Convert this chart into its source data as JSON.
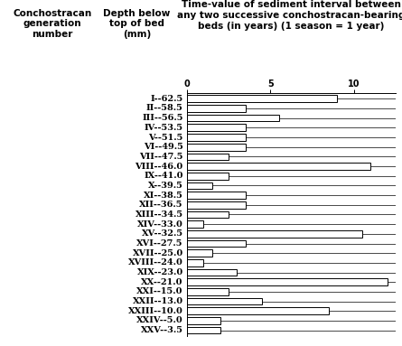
{
  "col1_header": "Conchostracan\ngeneration\nnumber",
  "col2_header": "Depth below\ntop of bed\n(mm)",
  "col3_header": "Time-value of sediment interval between\nany two successive conchostracan-bearing\nbeds (in years) (1 season = 1 year)",
  "labels": [
    "I--62.5",
    "II--58.5",
    "III--56.5",
    "IV--53.5",
    "V--51.5",
    "VI--49.5",
    "VII--47.5",
    "VIII--46.0",
    "IX--41.0",
    "X--39.5",
    "XI--38.5",
    "XII--36.5",
    "XIII--34.5",
    "XIV--33.0",
    "XV--32.5",
    "XVI--27.5",
    "XVII--25.0",
    "XVIII--24.0",
    "XIX--23.0",
    "XX--21.0",
    "XXI--15.0",
    "XXII--13.0",
    "XXIII--10.0",
    "XXIV--5.0",
    "XXV--3.5"
  ],
  "values": [
    9.0,
    3.5,
    5.5,
    3.5,
    3.5,
    3.5,
    2.5,
    11.0,
    2.5,
    1.5,
    3.5,
    3.5,
    2.5,
    1.0,
    10.5,
    3.5,
    1.5,
    1.0,
    3.0,
    12.0,
    2.5,
    4.5,
    8.5,
    2.0,
    2.0
  ],
  "xlim": [
    0,
    12.5
  ],
  "xticks": [
    0,
    5,
    10
  ],
  "bar_color": "white",
  "bar_edgecolor": "black",
  "bar_linewidth": 0.7,
  "background_color": "white",
  "fontsize_labels": 7.0,
  "fontsize_header": 7.5,
  "bar_height": 0.72,
  "figsize": [
    4.45,
    3.83
  ],
  "dpi": 100
}
